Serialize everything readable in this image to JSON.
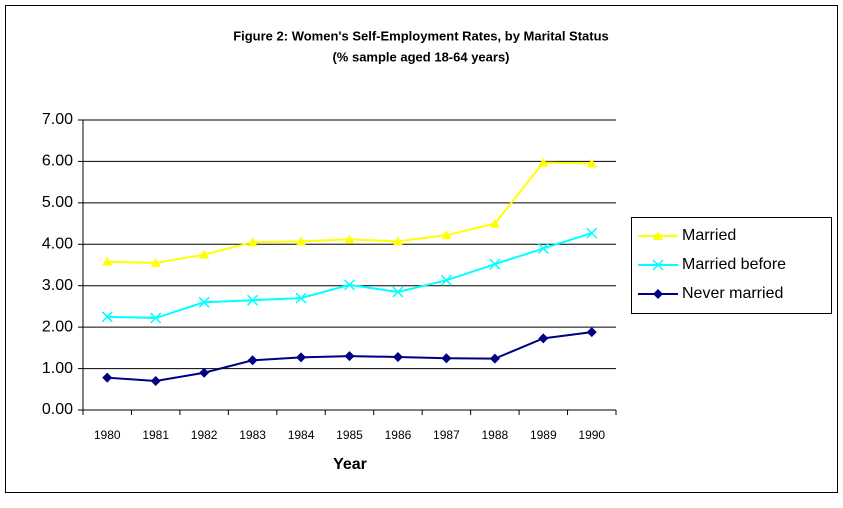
{
  "chart_data": {
    "type": "line",
    "title": "Figure 2: Women's Self-Employment Rates, by Marital Status",
    "subtitle": "(% sample aged 18-64 years)",
    "x_label": "Year",
    "categories": [
      "1980",
      "1981",
      "1982",
      "1983",
      "1984",
      "1985",
      "1986",
      "1987",
      "1988",
      "1989",
      "1990"
    ],
    "series": [
      {
        "name": "Married",
        "color": "#ffff00",
        "marker": "triangle",
        "values": [
          3.58,
          3.55,
          3.75,
          4.05,
          4.07,
          4.12,
          4.07,
          4.22,
          4.5,
          5.97,
          5.95
        ]
      },
      {
        "name": "Married before",
        "color": "#00ffff",
        "marker": "x",
        "values": [
          2.25,
          2.22,
          2.6,
          2.65,
          2.7,
          3.02,
          2.85,
          3.13,
          3.52,
          3.9,
          4.27
        ]
      },
      {
        "name": "Never married",
        "color": "#000080",
        "marker": "diamond",
        "values": [
          0.78,
          0.7,
          0.9,
          1.2,
          1.27,
          1.3,
          1.28,
          1.25,
          1.24,
          1.73,
          1.88
        ]
      }
    ],
    "ylim": [
      0,
      7
    ],
    "yticks": [
      {
        "value": 0,
        "label": "0.00"
      },
      {
        "value": 1,
        "label": "1.00"
      },
      {
        "value": 2,
        "label": "2.00"
      },
      {
        "value": 3,
        "label": "3.00"
      },
      {
        "value": 4,
        "label": "4.00"
      },
      {
        "value": 5,
        "label": "5.00"
      },
      {
        "value": 6,
        "label": "6.00"
      },
      {
        "value": 7,
        "label": "7.00"
      }
    ],
    "grid": true,
    "legend": "right"
  }
}
